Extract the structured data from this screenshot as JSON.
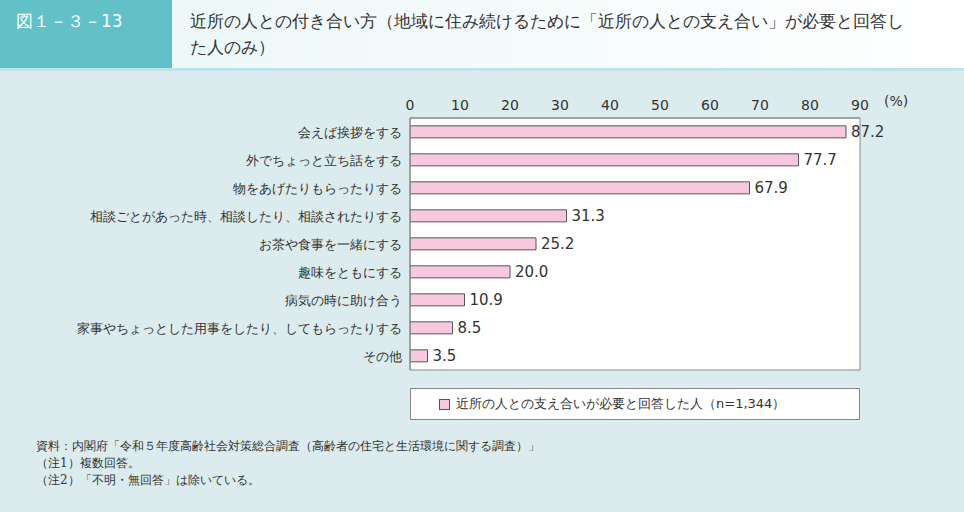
{
  "chart_data": {
    "type": "bar",
    "orientation": "horizontal",
    "figure_label": "図１－３－13",
    "title": "近所の人との付き合い方（地域に住み続けるために「近所の人との支え合い」が必要と回答した人のみ）",
    "xlabel": "(%)",
    "categories": [
      "会えば挨拶をする",
      "外でちょっと立ち話をする",
      "物をあげたりもらったりする",
      "相談ごとがあった時、相談したり、相談されたりする",
      "お茶や食事を一緒にする",
      "趣味をともにする",
      "病気の時に助け合う",
      "家事やちょっとした用事をしたり、してもらったりする",
      "その他"
    ],
    "series": [
      {
        "name": "近所の人との支え合いが必要と回答した人（n=1,344）",
        "color": "#f7c9de",
        "values": [
          87.2,
          77.7,
          67.9,
          31.3,
          25.2,
          20.0,
          10.9,
          8.5,
          3.5
        ],
        "value_labels": [
          "87.2",
          "77.7",
          "67.9",
          "31.3",
          "25.2",
          "20.0",
          "10.9",
          "8.5",
          "3.5"
        ]
      }
    ],
    "xlim": [
      0,
      90
    ],
    "xticks": [
      0,
      10,
      20,
      30,
      40,
      50,
      60,
      70,
      80,
      90
    ],
    "grid": false,
    "data_labels": true,
    "legend": "bottom",
    "notes": [
      "資料：内閣府「令和５年度高齢社会対策総合調査（高齢者の住宅と生活環境に関する調査）」",
      "（注1）複数回答。",
      "（注2）「不明・無回答」は除いている。"
    ]
  }
}
